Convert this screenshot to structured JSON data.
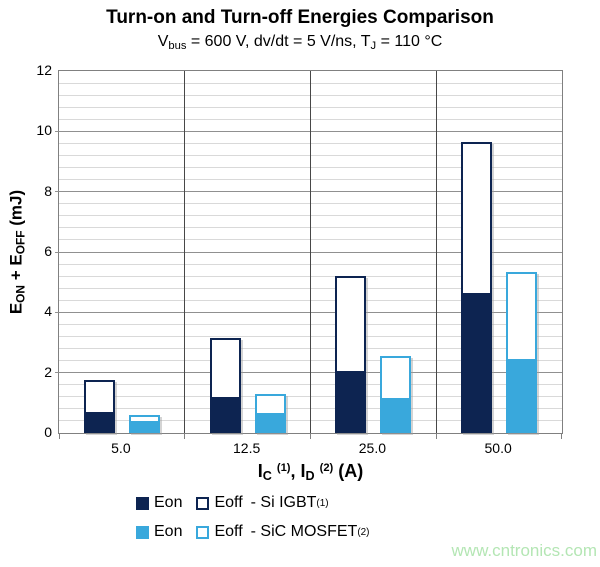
{
  "title": "Turn-on and Turn-off Energies Comparison",
  "subtitle_segments": [
    {
      "text": "V"
    },
    {
      "text": "bus",
      "style": "sub"
    },
    {
      "text": " = 600 V, dv/dt = 5 V/ns, T"
    },
    {
      "text": "J",
      "style": "sub"
    },
    {
      "text": " = 110 °C"
    }
  ],
  "watermark": "www.cntronics.com",
  "colors": {
    "navy": "#0d2451",
    "light_blue": "#39a8dc",
    "grid_minor": "#d9d9d9",
    "grid_major": "#909090",
    "axis_border": "#808080",
    "separator": "#474747",
    "watermark": "#b4e6b4"
  },
  "chart_data": {
    "type": "bar",
    "stacked": true,
    "title": "Turn-on and Turn-off Energies Comparison",
    "subtitle": "Vbus = 600 V, dv/dt = 5 V/ns, TJ = 110 °C",
    "ylabel": "EON + EOFF (mJ)",
    "ylabel_segments": [
      {
        "text": "E"
      },
      {
        "text": "ON",
        "style": "sub"
      },
      {
        "text": " + E"
      },
      {
        "text": "OFF",
        "style": "sub"
      },
      {
        "text": " (mJ)"
      }
    ],
    "xlabel": "IC (1), ID (2) (A)",
    "xlabel_segments": [
      {
        "text": "I"
      },
      {
        "text": "C",
        "style": "sub"
      },
      {
        "text": " "
      },
      {
        "text": "(1)",
        "style": "sup"
      },
      {
        "text": ", I"
      },
      {
        "text": "D",
        "style": "sub"
      },
      {
        "text": " "
      },
      {
        "text": "(2)",
        "style": "sup"
      },
      {
        "text": " (A)"
      }
    ],
    "categories": [
      "5.0",
      "12.5",
      "25.0",
      "50.0"
    ],
    "series": [
      {
        "name": "Eon - Si IGBT (1)",
        "values": [
          0.7,
          1.2,
          2.05,
          4.65
        ],
        "fill": "#0d2451",
        "border": "#0d2451",
        "stack": "si-igbt"
      },
      {
        "name": "Eoff - Si IGBT (1)",
        "values": [
          1.05,
          1.95,
          3.15,
          5.0
        ],
        "fill": "#ffffff",
        "border": "#0d2451",
        "stack": "si-igbt"
      },
      {
        "name": "Eon - SiC MOSFET (2)",
        "values": [
          0.4,
          0.65,
          1.15,
          2.45
        ],
        "fill": "#39a8dc",
        "border": "#39a8dc",
        "stack": "sic-mosfet"
      },
      {
        "name": "Eoff - SiC MOSFET (2)",
        "values": [
          0.2,
          0.65,
          1.4,
          2.9
        ],
        "fill": "#ffffff",
        "border": "#39a8dc",
        "stack": "sic-mosfet"
      }
    ],
    "stack_pairs": [
      [
        0,
        1
      ],
      [
        2,
        3
      ]
    ],
    "stack_totals": {
      "si_igbt": [
        1.75,
        3.15,
        5.2,
        9.65
      ],
      "sic_mosfet": [
        0.6,
        1.3,
        2.55,
        5.35
      ]
    },
    "ylim": [
      0,
      12
    ],
    "y_major_step": 2,
    "y_minor_step": 0.4,
    "y_tick_labels": [
      "0",
      "2",
      "4",
      "6",
      "8",
      "10",
      "12"
    ],
    "grid": true,
    "legend_position": "bottom"
  },
  "legend": {
    "rows": [
      {
        "eon_label": "Eon",
        "eoff_label": "Eoff",
        "device_label": "- Si IGBT",
        "device_sup": "(1)",
        "color": "#0d2451"
      },
      {
        "eon_label": "Eon",
        "eoff_label": "Eoff",
        "device_label": "- SiC MOSFET",
        "device_sup": "(2)",
        "color": "#39a8dc"
      }
    ]
  }
}
